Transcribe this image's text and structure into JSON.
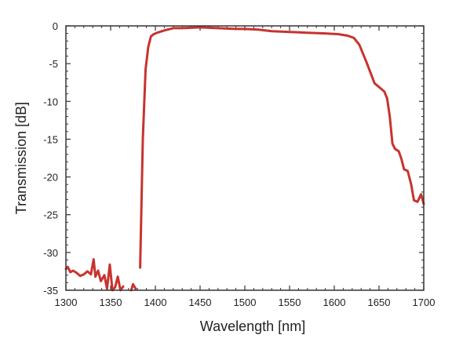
{
  "chart_data": {
    "type": "line",
    "xlabel": "Wavelength [nm]",
    "ylabel": "Transmission [dB]",
    "xlim": [
      1300,
      1700
    ],
    "ylim": [
      -35,
      0
    ],
    "xticks": [
      1300,
      1350,
      1400,
      1450,
      1500,
      1550,
      1600,
      1650,
      1700
    ],
    "yticks": [
      0,
      -5,
      -10,
      -15,
      -20,
      -25,
      -30,
      -35
    ],
    "grid": false,
    "series": [
      {
        "color": "#c8332f",
        "x": [
          1300,
          1302,
          1305,
          1308,
          1312,
          1316,
          1320,
          1324,
          1328,
          1331,
          1333,
          1336,
          1339,
          1343,
          1346,
          1349,
          1352,
          1355,
          1358,
          1361,
          1364
        ],
        "y": [
          -32.2,
          -31.9,
          -32.6,
          -32.4,
          -32.7,
          -33.1,
          -32.9,
          -32.5,
          -32.9,
          -30.9,
          -33.2,
          -32.4,
          -33.8,
          -33.0,
          -34.8,
          -31.6,
          -35.0,
          -34.6,
          -33.2,
          -35.0,
          -34.5
        ]
      },
      {
        "color": "#c8332f",
        "x": [
          1373,
          1375,
          1378
        ],
        "y": [
          -35.0,
          -34.2,
          -34.8
        ]
      },
      {
        "color": "#c8332f",
        "x": [
          1383,
          1386,
          1389,
          1392,
          1395,
          1398,
          1402,
          1410,
          1420,
          1430,
          1450,
          1470,
          1490,
          1500,
          1515,
          1530,
          1550,
          1570,
          1590,
          1605,
          1615,
          1622,
          1628,
          1636,
          1645,
          1652,
          1656,
          1659,
          1662,
          1665,
          1668,
          1672,
          1675,
          1678,
          1682,
          1686,
          1689,
          1693,
          1697,
          1700
        ],
        "y": [
          -32.0,
          -15.0,
          -5.8,
          -2.8,
          -1.4,
          -1.1,
          -0.9,
          -0.6,
          -0.3,
          -0.3,
          -0.2,
          -0.3,
          -0.4,
          -0.4,
          -0.5,
          -0.7,
          -0.8,
          -0.9,
          -1.0,
          -1.1,
          -1.3,
          -1.6,
          -2.5,
          -4.8,
          -7.6,
          -8.3,
          -8.7,
          -9.6,
          -12.0,
          -15.6,
          -16.3,
          -16.6,
          -17.6,
          -19.0,
          -19.2,
          -21.0,
          -23.1,
          -23.3,
          -22.3,
          -23.6
        ]
      }
    ]
  }
}
